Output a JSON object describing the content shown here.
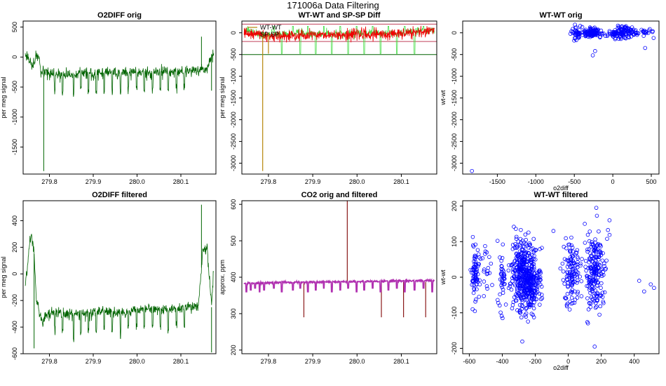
{
  "figure_title": "171006a   Data Filtering",
  "colors": {
    "green": "#006400",
    "lime": "#44dd44",
    "red": "#ee0000",
    "darkred": "#8b1a1a",
    "magenta": "#b030b0",
    "orange": "#b8860b",
    "blue": "#0000ff",
    "refline": "#c0405a"
  },
  "chart_data": [
    {
      "id": "p1",
      "type": "line",
      "title": "O2DIFF orig",
      "xlabel": "",
      "ylabel": "per meg signal",
      "xlim": [
        279.74,
        280.18
      ],
      "ylim": [
        -1950,
        600
      ],
      "xticks": [
        279.8,
        279.9,
        280.0,
        280.1
      ],
      "xtick_labels": [
        "279.8",
        "279.9",
        "280.0",
        "280.1"
      ],
      "yticks": [
        500,
        0,
        -500,
        -1000,
        -1500
      ],
      "ytick_labels": [
        "500",
        "0",
        "-500",
        "-1000",
        "-1500"
      ],
      "series": [
        {
          "name": "O2DIFF",
          "color": "#006400",
          "style": "noisy",
          "x": [
            279.745,
            279.75,
            279.76,
            279.77,
            279.776,
            279.78,
            279.79,
            279.8,
            279.82,
            279.85,
            279.88,
            279.9,
            279.93,
            279.96,
            280.0,
            280.03,
            280.06,
            280.08,
            280.1,
            280.12,
            280.14,
            280.16,
            280.17,
            280.175
          ],
          "y": [
            30,
            20,
            -150,
            0,
            -10,
            -260,
            -270,
            -290,
            -300,
            -290,
            -270,
            -280,
            -260,
            -270,
            -250,
            -260,
            -240,
            -255,
            -240,
            -230,
            -210,
            -200,
            20,
            30
          ],
          "dips": [
            279.812,
            279.83,
            279.855,
            279.872,
            279.889,
            279.907,
            279.925,
            279.943,
            279.962,
            279.98,
            279.999,
            280.016,
            280.035,
            280.053,
            280.071,
            280.09,
            280.108
          ],
          "spikes": [
            {
              "x": 279.787,
              "y": -1900
            },
            {
              "x": 280.147,
              "y": 340
            },
            {
              "x": 280.17,
              "y": -560
            }
          ]
        }
      ]
    },
    {
      "id": "p2",
      "type": "line",
      "title": "WT-WT and SP-SP Diff",
      "xlabel": "",
      "ylabel": "per meg signal",
      "xlim": [
        279.74,
        280.18
      ],
      "ylim": [
        -3250,
        270
      ],
      "xticks": [
        279.8,
        279.9,
        280.0,
        280.1
      ],
      "xtick_labels": [
        "279.8",
        "279.9",
        "280.0",
        "280.1"
      ],
      "yticks": [
        0,
        -500,
        -1000,
        -1500,
        -2000,
        -2500,
        -3000
      ],
      "ytick_labels": [
        "0",
        "-500",
        "-1000",
        "-1500",
        "-2000",
        "-2500",
        "-3000"
      ],
      "hlines": [
        {
          "y": 200,
          "color": "#c0405a"
        },
        {
          "y": -200,
          "color": "#c0405a"
        },
        {
          "y": -500,
          "color": "#006400"
        }
      ],
      "legend": {
        "position": "top-left",
        "items": [
          {
            "label": "WT-WT",
            "color": "#b8860b"
          },
          {
            "label": "SP-SP",
            "color": "#ee0000"
          }
        ]
      },
      "series": [
        {
          "name": "WT-WT",
          "color": "#44dd44",
          "style": "spiky",
          "x": [
            279.745,
            279.76,
            279.78,
            279.8,
            279.85,
            279.9,
            279.95,
            280.0,
            280.05,
            280.1,
            280.15,
            280.175
          ],
          "y": [
            20,
            40,
            -60,
            -40,
            -20,
            -10,
            -30,
            -10,
            -20,
            0,
            40,
            60
          ],
          "dips": [
            279.812,
            279.83,
            279.855,
            279.872,
            279.889,
            279.907,
            279.925,
            279.943,
            279.962,
            279.98,
            279.999,
            280.016,
            280.035,
            280.053,
            280.071,
            280.09,
            280.108,
            280.13,
            280.15
          ]
        },
        {
          "name": "SP-SP",
          "color": "#ee0000",
          "style": "noisy",
          "x": [
            279.745,
            279.76,
            279.775,
            279.79,
            279.81,
            279.85,
            279.9,
            279.95,
            280.0,
            280.05,
            280.1,
            280.15,
            280.175
          ],
          "y": [
            10,
            0,
            -40,
            -60,
            -80,
            -60,
            -40,
            -40,
            -30,
            -40,
            -20,
            30,
            80
          ]
        },
        {
          "name": "WT-WT spikes",
          "color": "#b8860b",
          "style": "spikes",
          "spikes": [
            {
              "x": 279.787,
              "y": -3180
            },
            {
              "x": 279.8,
              "y": -480
            }
          ]
        }
      ]
    },
    {
      "id": "p3",
      "type": "scatter",
      "title": "WT-WT orig",
      "xlabel": "o2diff",
      "ylabel": "wt-wt",
      "xlim": [
        -1950,
        600
      ],
      "ylim": [
        -3250,
        270
      ],
      "xticks": [
        -1500,
        -1000,
        -500,
        0,
        500
      ],
      "xtick_labels": [
        "-1500",
        "-1000",
        "-500",
        "0",
        "500"
      ],
      "yticks": [
        0,
        -500,
        -1000,
        -1500,
        -2000,
        -2500,
        -3000
      ],
      "ytick_labels": [
        "0",
        "-500",
        "-1000",
        "-1500",
        "-2000",
        "-2500",
        "-3000"
      ],
      "series": [
        {
          "name": "points",
          "color": "#0000ff",
          "clusters": [
            {
              "cx": -480,
              "cy": 0,
              "sx": 40,
              "sy": 70,
              "n": 35
            },
            {
              "cx": -270,
              "cy": 0,
              "sx": 70,
              "sy": 50,
              "n": 110
            },
            {
              "cx": 10,
              "cy": -20,
              "sx": 25,
              "sy": 40,
              "n": 25
            },
            {
              "cx": 150,
              "cy": 0,
              "sx": 70,
              "sy": 80,
              "n": 90
            },
            {
              "cx": 400,
              "cy": 0,
              "sx": 60,
              "sy": 40,
              "n": 25
            }
          ],
          "outliers": [
            {
              "x": -1830,
              "y": -3180
            },
            {
              "x": -260,
              "y": -520
            },
            {
              "x": -230,
              "y": -420
            },
            {
              "x": 420,
              "y": -350
            },
            {
              "x": 530,
              "y": -120
            }
          ]
        }
      ]
    },
    {
      "id": "p4",
      "type": "line",
      "title": "O2DIFF filtered",
      "xlabel": "",
      "ylabel": "per meg signal",
      "xlim": [
        279.74,
        280.18
      ],
      "ylim": [
        -600,
        550
      ],
      "xticks": [
        279.8,
        279.9,
        280.0,
        280.1
      ],
      "xtick_labels": [
        "279.8",
        "279.9",
        "280.0",
        "280.1"
      ],
      "yticks": [
        400,
        200,
        0,
        -200,
        -400,
        -600
      ],
      "ytick_labels": [
        "400",
        "200",
        "0",
        "-200",
        "-400",
        "-600"
      ],
      "series": [
        {
          "name": "O2DIFF filtered",
          "color": "#006400",
          "style": "noisy",
          "x": [
            279.745,
            279.75,
            279.755,
            279.76,
            279.765,
            279.77,
            279.778,
            279.785,
            279.79,
            279.8,
            279.82,
            279.85,
            279.88,
            279.9,
            279.93,
            279.96,
            280.0,
            280.03,
            280.06,
            280.08,
            280.1,
            280.12,
            280.14,
            280.15,
            280.16,
            280.17,
            280.175
          ],
          "y": [
            -80,
            60,
            250,
            280,
            150,
            -200,
            -300,
            -380,
            -310,
            -300,
            -290,
            -310,
            -300,
            -290,
            -280,
            -290,
            -270,
            -260,
            -260,
            -260,
            -260,
            -240,
            -240,
            170,
            190,
            -250,
            30
          ],
          "dips": [
            279.812,
            279.83,
            279.855,
            279.872,
            279.889,
            279.907,
            279.925,
            279.943,
            279.962,
            279.98,
            279.999,
            280.016,
            280.035,
            280.053,
            280.071,
            280.09,
            280.108
          ],
          "spikes": [
            {
              "x": 280.147,
              "y": 520
            },
            {
              "x": 279.765,
              "y": -560
            },
            {
              "x": 280.17,
              "y": -590
            }
          ]
        }
      ]
    },
    {
      "id": "p5",
      "type": "line",
      "title": "CO2 orig and filtered",
      "xlabel": "",
      "ylabel": "approx. ppm",
      "xlim": [
        279.74,
        280.18
      ],
      "ylim": [
        190,
        610
      ],
      "xticks": [
        279.8,
        279.9,
        280.0,
        280.1
      ],
      "xtick_labels": [
        "279.8",
        "279.9",
        "280.0",
        "280.1"
      ],
      "yticks": [
        200,
        300,
        400,
        500,
        600
      ],
      "ytick_labels": [
        "200",
        "300",
        "400",
        "500",
        "600"
      ],
      "series": [
        {
          "name": "CO2 orig",
          "color": "#8b1a1a",
          "style": "spikes",
          "spikes": [
            {
              "x": 279.88,
              "y": 290
            },
            {
              "x": 279.978,
              "y": 610
            },
            {
              "x": 280.055,
              "y": 290
            },
            {
              "x": 280.105,
              "y": 290
            },
            {
              "x": 280.155,
              "y": 290
            }
          ]
        },
        {
          "name": "CO2 filtered",
          "color": "#b030b0",
          "style": "flat",
          "x": [
            279.745,
            279.8,
            279.9,
            280.0,
            280.1,
            280.175
          ],
          "y": [
            383,
            385,
            387,
            388,
            390,
            391
          ],
          "dips": [
            279.75,
            279.76,
            279.77,
            279.78,
            279.79,
            279.812,
            279.83,
            279.855,
            279.872,
            279.889,
            279.907,
            279.925,
            279.943,
            279.962,
            279.98,
            279.999,
            280.016,
            280.035,
            280.053,
            280.071,
            280.09,
            280.108,
            280.13,
            280.15,
            280.17
          ]
        }
      ]
    },
    {
      "id": "p6",
      "type": "scatter",
      "title": "WT-WT filtered",
      "xlabel": "o2diff",
      "ylabel": "wt-wt",
      "xlim": [
        -640,
        550
      ],
      "ylim": [
        -215,
        215
      ],
      "xticks": [
        -600,
        -400,
        -200,
        0,
        200,
        400
      ],
      "xtick_labels": [
        "-600",
        "-400",
        "-200",
        "0",
        "200",
        "400"
      ],
      "yticks": [
        200,
        100,
        0,
        -100,
        -200
      ],
      "ytick_labels": [
        "200",
        "100",
        "0",
        "-100",
        "-200"
      ],
      "series": [
        {
          "name": "points",
          "color": "#0000ff",
          "clusters": [
            {
              "cx": -560,
              "cy": 10,
              "sx": 15,
              "sy": 45,
              "n": 70
            },
            {
              "cx": -500,
              "cy": 10,
              "sx": 15,
              "sy": 30,
              "n": 20
            },
            {
              "cx": -400,
              "cy": -10,
              "sx": 12,
              "sy": 50,
              "n": 40
            },
            {
              "cx": -290,
              "cy": 10,
              "sx": 35,
              "sy": 55,
              "n": 260
            },
            {
              "cx": -230,
              "cy": -10,
              "sx": 30,
              "sy": 40,
              "n": 260
            },
            {
              "cx": 20,
              "cy": 10,
              "sx": 25,
              "sy": 45,
              "n": 120
            },
            {
              "cx": 160,
              "cy": 10,
              "sx": 30,
              "sy": 60,
              "n": 200
            }
          ],
          "outliers": [
            {
              "x": 500,
              "y": -20
            },
            {
              "x": 520,
              "y": -30
            },
            {
              "x": 430,
              "y": -10
            },
            {
              "x": 460,
              "y": -40
            },
            {
              "x": 250,
              "y": 160
            },
            {
              "x": 170,
              "y": 195
            },
            {
              "x": 160,
              "y": -195
            },
            {
              "x": -580,
              "y": -90
            },
            {
              "x": -90,
              "y": 130
            },
            {
              "x": 100,
              "y": 150
            }
          ]
        }
      ]
    }
  ]
}
